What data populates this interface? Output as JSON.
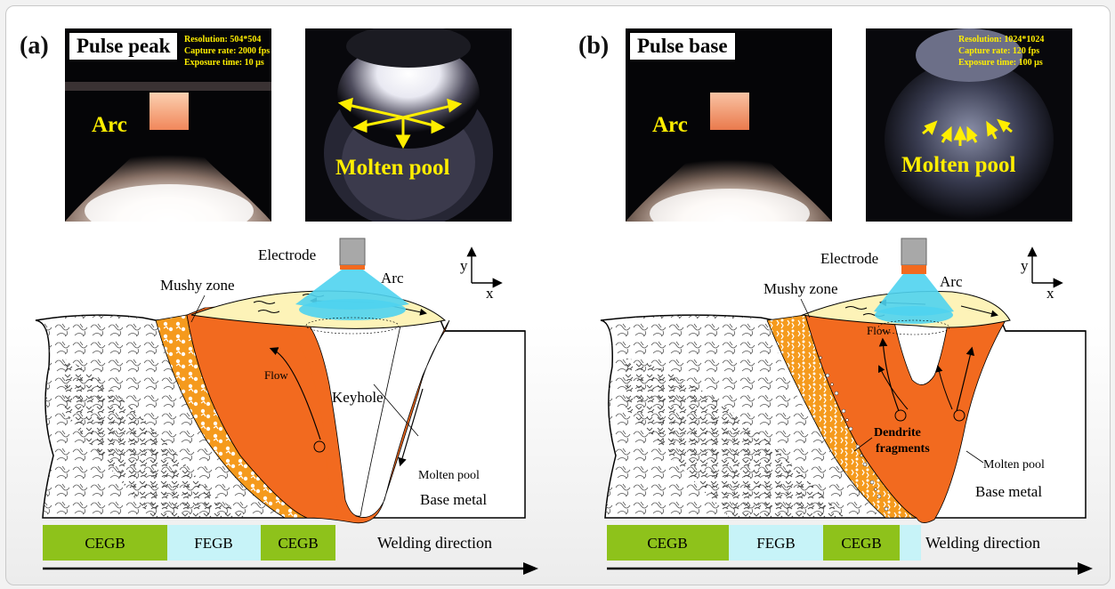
{
  "panels": [
    {
      "label": "(a)",
      "state": "Pulse peak",
      "camera": {
        "resolution": "Resolution: 504*504",
        "capture_rate": "Capture rate: 2000 fps",
        "exposure": "Exposure time: 10 µs"
      },
      "photo_arc_label": "Arc",
      "photo_pool_label": "Molten pool",
      "diagram": {
        "electrode": "Electrode",
        "arc": "Arc",
        "mushy_zone": "Mushy zone",
        "flow": "Flow",
        "keyhole": "Keyhole",
        "molten_pool": "Molten pool",
        "base_metal": "Base metal",
        "axis_y": "y",
        "axis_x": "x"
      },
      "grain_bands": [
        "CEGB",
        "FEGB",
        "CEGB"
      ],
      "welding_direction": "Welding direction"
    },
    {
      "label": "(b)",
      "state": "Pulse base",
      "camera": {
        "resolution": "Resolution: 1024*1024",
        "capture_rate": "Capture rate: 120 fps",
        "exposure": "Exposure time: 100 µs"
      },
      "photo_arc_label": "Arc",
      "photo_pool_label": "Molten pool",
      "diagram": {
        "electrode": "Electrode",
        "arc": "Arc",
        "mushy_zone": "Mushy zone",
        "flow": "Flow",
        "dendrite_1": "Dendrite",
        "dendrite_2": "fragments",
        "molten_pool": "Molten pool",
        "base_metal": "Base metal",
        "axis_y": "y",
        "axis_x": "x"
      },
      "grain_bands": [
        "CEGB",
        "FEGB",
        "CEGB"
      ],
      "welding_direction": "Welding direction"
    }
  ],
  "colors": {
    "molten": "#f26a1f",
    "mushy": "#f59a1d",
    "cegb": "#8ec21b",
    "fegb": "#c7f3f8",
    "arc": "#4fd3f0",
    "pool_surface": "#fdf3b8",
    "electrode": "#a8a8a8",
    "photo_label": "#ffee00"
  }
}
